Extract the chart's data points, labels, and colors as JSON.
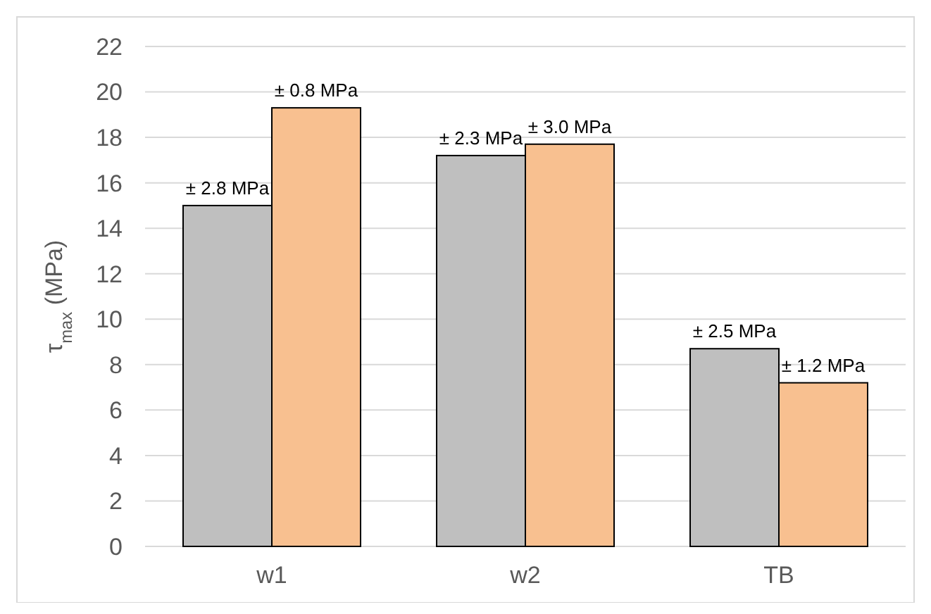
{
  "chart_data": {
    "type": "bar",
    "ylabel": "τ$_{max}$ (MPa)",
    "categories": [
      "w1",
      "w2",
      "TB"
    ],
    "series": [
      {
        "color": "#bfbfbf",
        "values": [
          15.0,
          17.2,
          8.7
        ]
      },
      {
        "color": "#f8c090",
        "values": [
          19.3,
          17.7,
          7.2
        ]
      }
    ],
    "annotations": [
      {
        "text": "± 2.8 MPa",
        "x": "w1",
        "y": 15.0
      },
      {
        "text": "± 0.8 MPa",
        "x": "w1",
        "y": 19.3
      },
      {
        "text": "± 2.3 MPa",
        "x": "w2",
        "y": 17.2
      },
      {
        "text": "± 3.0 MPa",
        "x": "w2",
        "y": 17.7
      },
      {
        "text": "± 2.5 MPa",
        "x": "TB",
        "y": 8.7
      },
      {
        "text": "± 1.2 MPa",
        "x": "TB",
        "y": 7.2
      }
    ],
    "ylim": [
      0,
      22
    ],
    "yticks": [
      0,
      2,
      4,
      6,
      8,
      10,
      12,
      14,
      16,
      18,
      20,
      22
    ],
    "grid": "y"
  }
}
